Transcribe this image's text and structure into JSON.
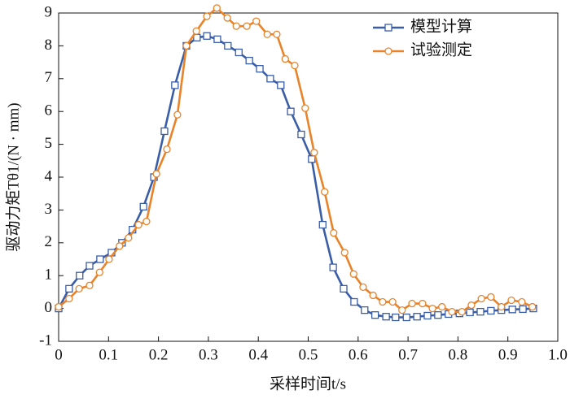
{
  "chart_data": {
    "type": "line",
    "xlabel": "采样时间t/s",
    "ylabel": "驱动力矩Tθ1/(N · mm)",
    "xlim": [
      0,
      1
    ],
    "xticks": [
      0,
      0.1,
      0.2,
      0.3,
      0.4,
      0.5,
      0.6,
      0.7,
      0.8,
      0.9,
      {
        "value": 1,
        "label": "1.0"
      }
    ],
    "ylim": [
      -1,
      9
    ],
    "yticks": [
      -1,
      0,
      1,
      2,
      3,
      4,
      5,
      6,
      7,
      8,
      9
    ],
    "legend": "upper right",
    "series": [
      {
        "name": "模型计算",
        "color": "#3a5da8",
        "marker": "square",
        "x": [
          0,
          0.021,
          0.042,
          0.062,
          0.083,
          0.106,
          0.127,
          0.148,
          0.17,
          0.191,
          0.212,
          0.233,
          0.256,
          0.277,
          0.297,
          0.318,
          0.339,
          0.361,
          0.382,
          0.403,
          0.424,
          0.445,
          0.465,
          0.486,
          0.507,
          0.529,
          0.55,
          0.571,
          0.592,
          0.613,
          0.634,
          0.656,
          0.675,
          0.697,
          0.718,
          0.739,
          0.76,
          0.781,
          0.803,
          0.824,
          0.845,
          0.866,
          0.887,
          0.909,
          0.93,
          0.951
        ],
        "values": [
          0,
          0.6,
          1.0,
          1.3,
          1.5,
          1.7,
          2.0,
          2.4,
          3.1,
          4.0,
          5.4,
          6.8,
          8.0,
          8.25,
          8.3,
          8.2,
          8.0,
          7.8,
          7.55,
          7.3,
          7.0,
          6.8,
          6.0,
          5.3,
          4.55,
          2.55,
          1.25,
          0.6,
          0.2,
          -0.05,
          -0.2,
          -0.25,
          -0.27,
          -0.27,
          -0.25,
          -0.22,
          -0.2,
          -0.17,
          -0.15,
          -0.12,
          -0.1,
          -0.07,
          -0.05,
          -0.03,
          -0.02,
          0
        ]
      },
      {
        "name": "试验测定",
        "color": "#e8832a",
        "marker": "circle",
        "x": [
          0,
          0.021,
          0.041,
          0.062,
          0.082,
          0.101,
          0.122,
          0.14,
          0.16,
          0.176,
          0.196,
          0.217,
          0.238,
          0.256,
          0.276,
          0.297,
          0.317,
          0.338,
          0.356,
          0.377,
          0.396,
          0.418,
          0.437,
          0.454,
          0.473,
          0.494,
          0.512,
          0.533,
          0.551,
          0.573,
          0.591,
          0.61,
          0.63,
          0.649,
          0.669,
          0.688,
          0.708,
          0.729,
          0.749,
          0.768,
          0.788,
          0.808,
          0.827,
          0.847,
          0.866,
          0.887,
          0.907,
          0.928,
          0.949
        ],
        "values": [
          0.05,
          0.3,
          0.6,
          0.7,
          1.1,
          1.5,
          1.9,
          2.15,
          2.55,
          2.65,
          4.1,
          4.85,
          5.9,
          8.0,
          8.45,
          8.9,
          9.15,
          8.85,
          8.6,
          8.6,
          8.75,
          8.35,
          8.35,
          7.6,
          7.4,
          6.1,
          4.75,
          3.55,
          2.3,
          1.7,
          1.05,
          0.65,
          0.4,
          0.2,
          0.2,
          -0.05,
          0.15,
          0.15,
          0,
          0.05,
          -0.1,
          -0.1,
          0.1,
          0.3,
          0.35,
          0.05,
          0.25,
          0.2,
          0.05
        ]
      }
    ]
  }
}
